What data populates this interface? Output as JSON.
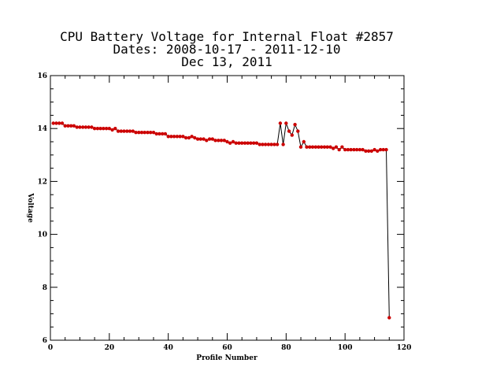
{
  "chart_data": {
    "type": "line",
    "title_lines": [
      "CPU Battery Voltage for Internal Float #2857",
      "Dates:  2008-10-17 -  2011-12-10",
      "Dec 13, 2011"
    ],
    "xlabel": "Profile Number",
    "ylabel": "Voltage",
    "xlim": [
      0,
      120
    ],
    "ylim": [
      6,
      16
    ],
    "x_ticks": [
      0,
      20,
      40,
      60,
      80,
      100,
      120
    ],
    "y_ticks": [
      6,
      8,
      10,
      12,
      14,
      16
    ],
    "grid": false,
    "colors": {
      "line": "#000000",
      "marker": "#cc0000"
    },
    "series": [
      {
        "x": [
          1,
          2,
          3,
          4,
          5,
          6,
          7,
          8,
          9,
          10,
          11,
          12,
          13,
          14,
          15,
          16,
          17,
          18,
          19,
          20,
          21,
          22,
          23,
          24,
          25,
          26,
          27,
          28,
          29,
          30,
          31,
          32,
          33,
          34,
          35,
          36,
          37,
          38,
          39,
          40,
          41,
          42,
          43,
          44,
          45,
          46,
          47,
          48,
          49,
          50,
          51,
          52,
          53,
          54,
          55,
          56,
          57,
          58,
          59,
          60,
          61,
          62,
          63,
          64,
          65,
          66,
          67,
          68,
          69,
          70,
          71,
          72,
          73,
          74,
          75,
          76,
          77,
          78,
          79,
          80,
          81,
          82,
          83,
          84,
          85,
          86,
          87,
          88,
          89,
          90,
          91,
          92,
          93,
          94,
          95,
          96,
          97,
          98,
          99,
          100,
          101,
          102,
          103,
          104,
          105,
          106,
          107,
          108,
          109,
          110,
          111,
          112,
          113,
          114,
          115
        ],
        "values": [
          14.2,
          14.2,
          14.2,
          14.2,
          14.1,
          14.1,
          14.1,
          14.1,
          14.05,
          14.05,
          14.05,
          14.05,
          14.05,
          14.05,
          14.0,
          14.0,
          14.0,
          14.0,
          14.0,
          14.0,
          13.95,
          14.0,
          13.9,
          13.9,
          13.9,
          13.9,
          13.9,
          13.9,
          13.85,
          13.85,
          13.85,
          13.85,
          13.85,
          13.85,
          13.85,
          13.8,
          13.8,
          13.8,
          13.8,
          13.7,
          13.7,
          13.7,
          13.7,
          13.7,
          13.7,
          13.65,
          13.65,
          13.7,
          13.65,
          13.6,
          13.6,
          13.6,
          13.55,
          13.6,
          13.6,
          13.55,
          13.55,
          13.55,
          13.55,
          13.5,
          13.45,
          13.5,
          13.45,
          13.45,
          13.45,
          13.45,
          13.45,
          13.45,
          13.45,
          13.45,
          13.4,
          13.4,
          13.4,
          13.4,
          13.4,
          13.4,
          13.4,
          14.2,
          13.4,
          14.2,
          13.9,
          13.75,
          14.15,
          13.9,
          13.3,
          13.5,
          13.3,
          13.3,
          13.3,
          13.3,
          13.3,
          13.3,
          13.3,
          13.3,
          13.3,
          13.25,
          13.3,
          13.2,
          13.3,
          13.2,
          13.2,
          13.2,
          13.2,
          13.2,
          13.2,
          13.2,
          13.15,
          13.15,
          13.15,
          13.2,
          13.15,
          13.2,
          13.2,
          13.2,
          6.85
        ]
      }
    ]
  }
}
